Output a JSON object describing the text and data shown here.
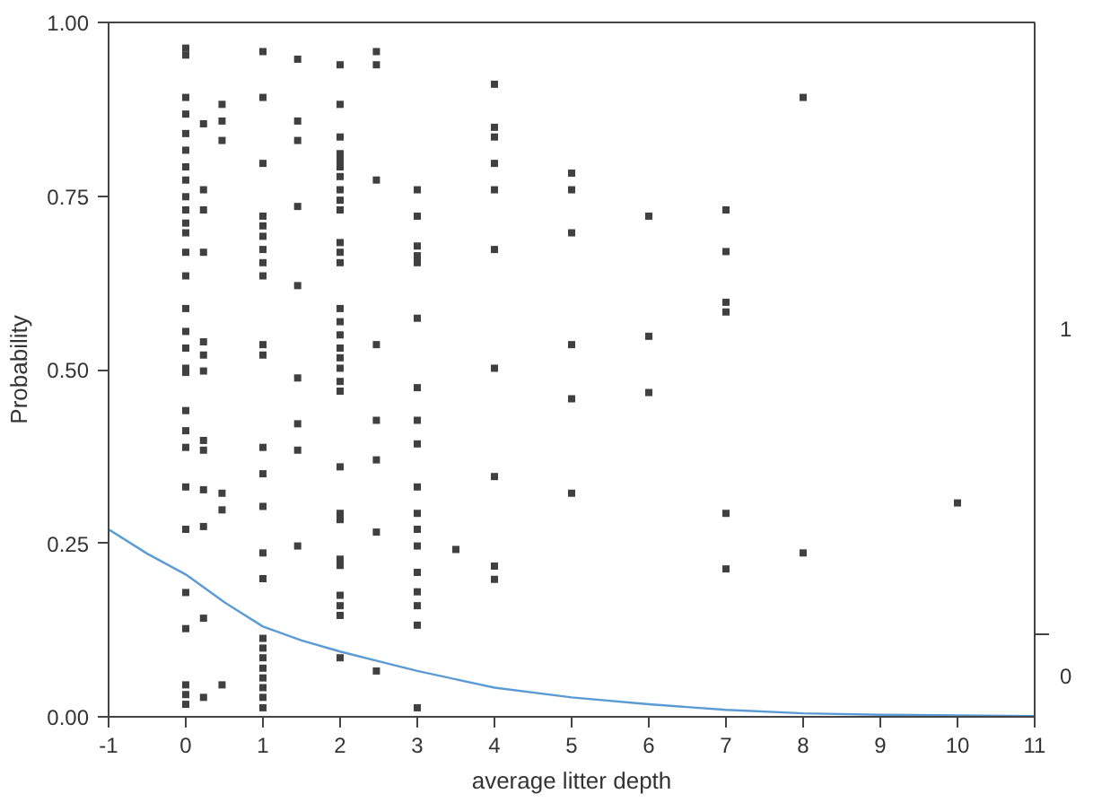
{
  "chart_data": {
    "type": "scatter",
    "xlabel": "average litter depth",
    "ylabel": "Probability",
    "xlim": [
      -1,
      11
    ],
    "ylim": [
      0,
      1
    ],
    "xticks": [
      -1,
      0,
      1,
      2,
      3,
      4,
      5,
      6,
      7,
      8,
      9,
      10,
      11
    ],
    "yticks": [
      {
        "value": 0,
        "label": "0.00"
      },
      {
        "value": 0.25,
        "label": "0.25"
      },
      {
        "value": 0.5,
        "label": "0.50"
      },
      {
        "value": 0.75,
        "label": "0.75"
      },
      {
        "value": 1,
        "label": "1.00"
      }
    ],
    "y2lim": [
      0,
      1
    ],
    "y2ticks": [
      {
        "value": 0.06,
        "label": "0"
      },
      {
        "value": 0.12,
        "label": null
      },
      {
        "value": 0.56,
        "label": "1"
      }
    ],
    "grid": false,
    "series": [
      {
        "type": "scatter",
        "color": "#404040",
        "marker": "square",
        "x": [
          0,
          0,
          0,
          0,
          0,
          0,
          0,
          0,
          0,
          0,
          0,
          0,
          0,
          0,
          0,
          0,
          0,
          0,
          0,
          0,
          0,
          0,
          0,
          0,
          0,
          0,
          0,
          0,
          0,
          0.23,
          0.23,
          0.23,
          0.23,
          0.23,
          0.23,
          0.23,
          0.23,
          0.23,
          0.23,
          0.23,
          0.23,
          0.23,
          0.47,
          0.47,
          0.47,
          0.47,
          0.47,
          0.47,
          1,
          1,
          1,
          1,
          1,
          1,
          1,
          1,
          1,
          1,
          1,
          1,
          1,
          1,
          1,
          1,
          1,
          1,
          1,
          1,
          1,
          1,
          1,
          1,
          1.45,
          1.45,
          1.45,
          1.45,
          1.45,
          1.45,
          1.45,
          1.45,
          1.45,
          2,
          2,
          2,
          2,
          2,
          2,
          2,
          2,
          2,
          2,
          2,
          2,
          2,
          2,
          2,
          2,
          2,
          2,
          2,
          2,
          2,
          2,
          2,
          2,
          2,
          2,
          2,
          2,
          2,
          2,
          2.47,
          2.47,
          2.47,
          2.47,
          2.47,
          2.47,
          2.47,
          2.47,
          3,
          3,
          3,
          3,
          3,
          3,
          3,
          3,
          3,
          3,
          3,
          3,
          3,
          3,
          3,
          3,
          3,
          3,
          3.5,
          4,
          4,
          4,
          4,
          4,
          4,
          4,
          4,
          4,
          4,
          5,
          5,
          5,
          5,
          5,
          5,
          6,
          6,
          6,
          7,
          7,
          7,
          7,
          7,
          7,
          8,
          8,
          10
        ],
        "values": [
          0.963,
          0.953,
          0.892,
          0.868,
          0.84,
          0.816,
          0.792,
          0.773,
          0.749,
          0.73,
          0.711,
          0.697,
          0.669,
          0.635,
          0.588,
          0.555,
          0.531,
          0.502,
          0.496,
          0.441,
          0.412,
          0.388,
          0.331,
          0.27,
          0.179,
          0.127,
          0.046,
          0.032,
          0.018,
          0.854,
          0.759,
          0.73,
          0.669,
          0.54,
          0.521,
          0.498,
          0.398,
          0.384,
          0.327,
          0.274,
          0.142,
          0.028,
          0.882,
          0.858,
          0.83,
          0.322,
          0.298,
          0.046,
          0.958,
          0.892,
          0.797,
          0.721,
          0.707,
          0.692,
          0.673,
          0.654,
          0.635,
          0.536,
          0.521,
          0.388,
          0.35,
          0.303,
          0.236,
          0.199,
          0.113,
          0.099,
          0.085,
          0.07,
          0.056,
          0.042,
          0.028,
          0.013,
          0.947,
          0.858,
          0.83,
          0.735,
          0.621,
          0.488,
          0.422,
          0.384,
          0.246,
          0.939,
          0.882,
          0.835,
          0.811,
          0.802,
          0.792,
          0.778,
          0.759,
          0.744,
          0.73,
          0.683,
          0.669,
          0.654,
          0.588,
          0.569,
          0.55,
          0.531,
          0.517,
          0.502,
          0.483,
          0.469,
          0.36,
          0.293,
          0.284,
          0.227,
          0.218,
          0.175,
          0.16,
          0.146,
          0.085,
          0.958,
          0.939,
          0.773,
          0.536,
          0.427,
          0.37,
          0.266,
          0.066,
          0.759,
          0.721,
          0.678,
          0.664,
          0.654,
          0.574,
          0.474,
          0.427,
          0.393,
          0.331,
          0.293,
          0.27,
          0.246,
          0.208,
          0.18,
          0.16,
          0.132,
          0.013,
          0.241,
          0.911,
          0.849,
          0.835,
          0.797,
          0.759,
          0.673,
          0.502,
          0.346,
          0.217,
          0.198,
          0.783,
          0.759,
          0.697,
          0.536,
          0.458,
          0.322,
          0.721,
          0.548,
          0.467,
          0.73,
          0.67,
          0.597,
          0.583,
          0.293,
          0.213,
          0.892,
          0.236,
          0.308
        ]
      },
      {
        "type": "line",
        "color": "#5b9bd5",
        "line_style": "solid",
        "marker": "none",
        "x": [
          -1,
          -0.5,
          0,
          0.5,
          1,
          1.5,
          2,
          2.5,
          3,
          4,
          5,
          6,
          7,
          8,
          9,
          10,
          11
        ],
        "values": [
          0.27,
          0.235,
          0.205,
          0.165,
          0.13,
          0.11,
          0.094,
          0.08,
          0.066,
          0.042,
          0.028,
          0.018,
          0.01,
          0.005,
          0.003,
          0.002,
          0.001
        ]
      }
    ]
  }
}
